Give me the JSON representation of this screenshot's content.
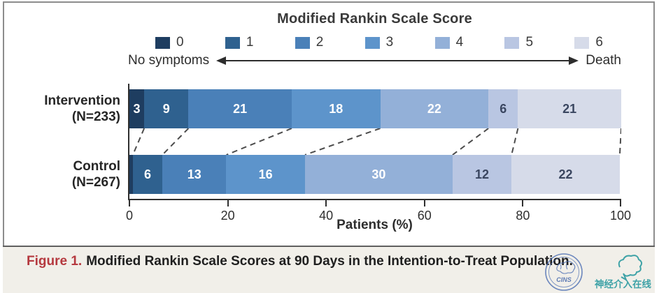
{
  "figure": {
    "title": "Modified Rankin Scale Score",
    "scale_left_label": "No symptoms",
    "scale_right_label": "Death",
    "xlabel": "Patients (%)"
  },
  "chart_data": {
    "type": "bar",
    "stacked": true,
    "orientation": "horizontal",
    "title": "Modified Rankin Scale Score",
    "xlabel": "Patients (%)",
    "xlim": [
      0,
      100
    ],
    "xticks": [
      0,
      20,
      40,
      60,
      80,
      100
    ],
    "legend_entries": [
      "0",
      "1",
      "2",
      "3",
      "4",
      "5",
      "6"
    ],
    "legend_scale": {
      "left": "No symptoms",
      "right": "Death"
    },
    "colors": [
      "#1e3d60",
      "#2f618f",
      "#4a80b8",
      "#5d94cb",
      "#93b0d8",
      "#b9c6e2",
      "#d6dbe9"
    ],
    "series": [
      {
        "name": "Intervention",
        "n_label": "(N=233)",
        "values": [
          3,
          9,
          21,
          18,
          22,
          6,
          21
        ],
        "labels": [
          "3",
          "9",
          "21",
          "18",
          "22",
          "6",
          "21"
        ]
      },
      {
        "name": "Control",
        "n_label": "(N=267)",
        "values": [
          0.7,
          6,
          13,
          16,
          30,
          12,
          22
        ],
        "labels": [
          "",
          "6",
          "13",
          "16",
          "30",
          "12",
          "22"
        ]
      }
    ]
  },
  "caption": {
    "figure_label": "Figure 1.",
    "text": "Modified Rankin Scale Scores at 90 Days in the Intention-to-Treat Population."
  },
  "watermark": {
    "stamp_text": "CINS",
    "logo_text": "神经介入在线"
  }
}
